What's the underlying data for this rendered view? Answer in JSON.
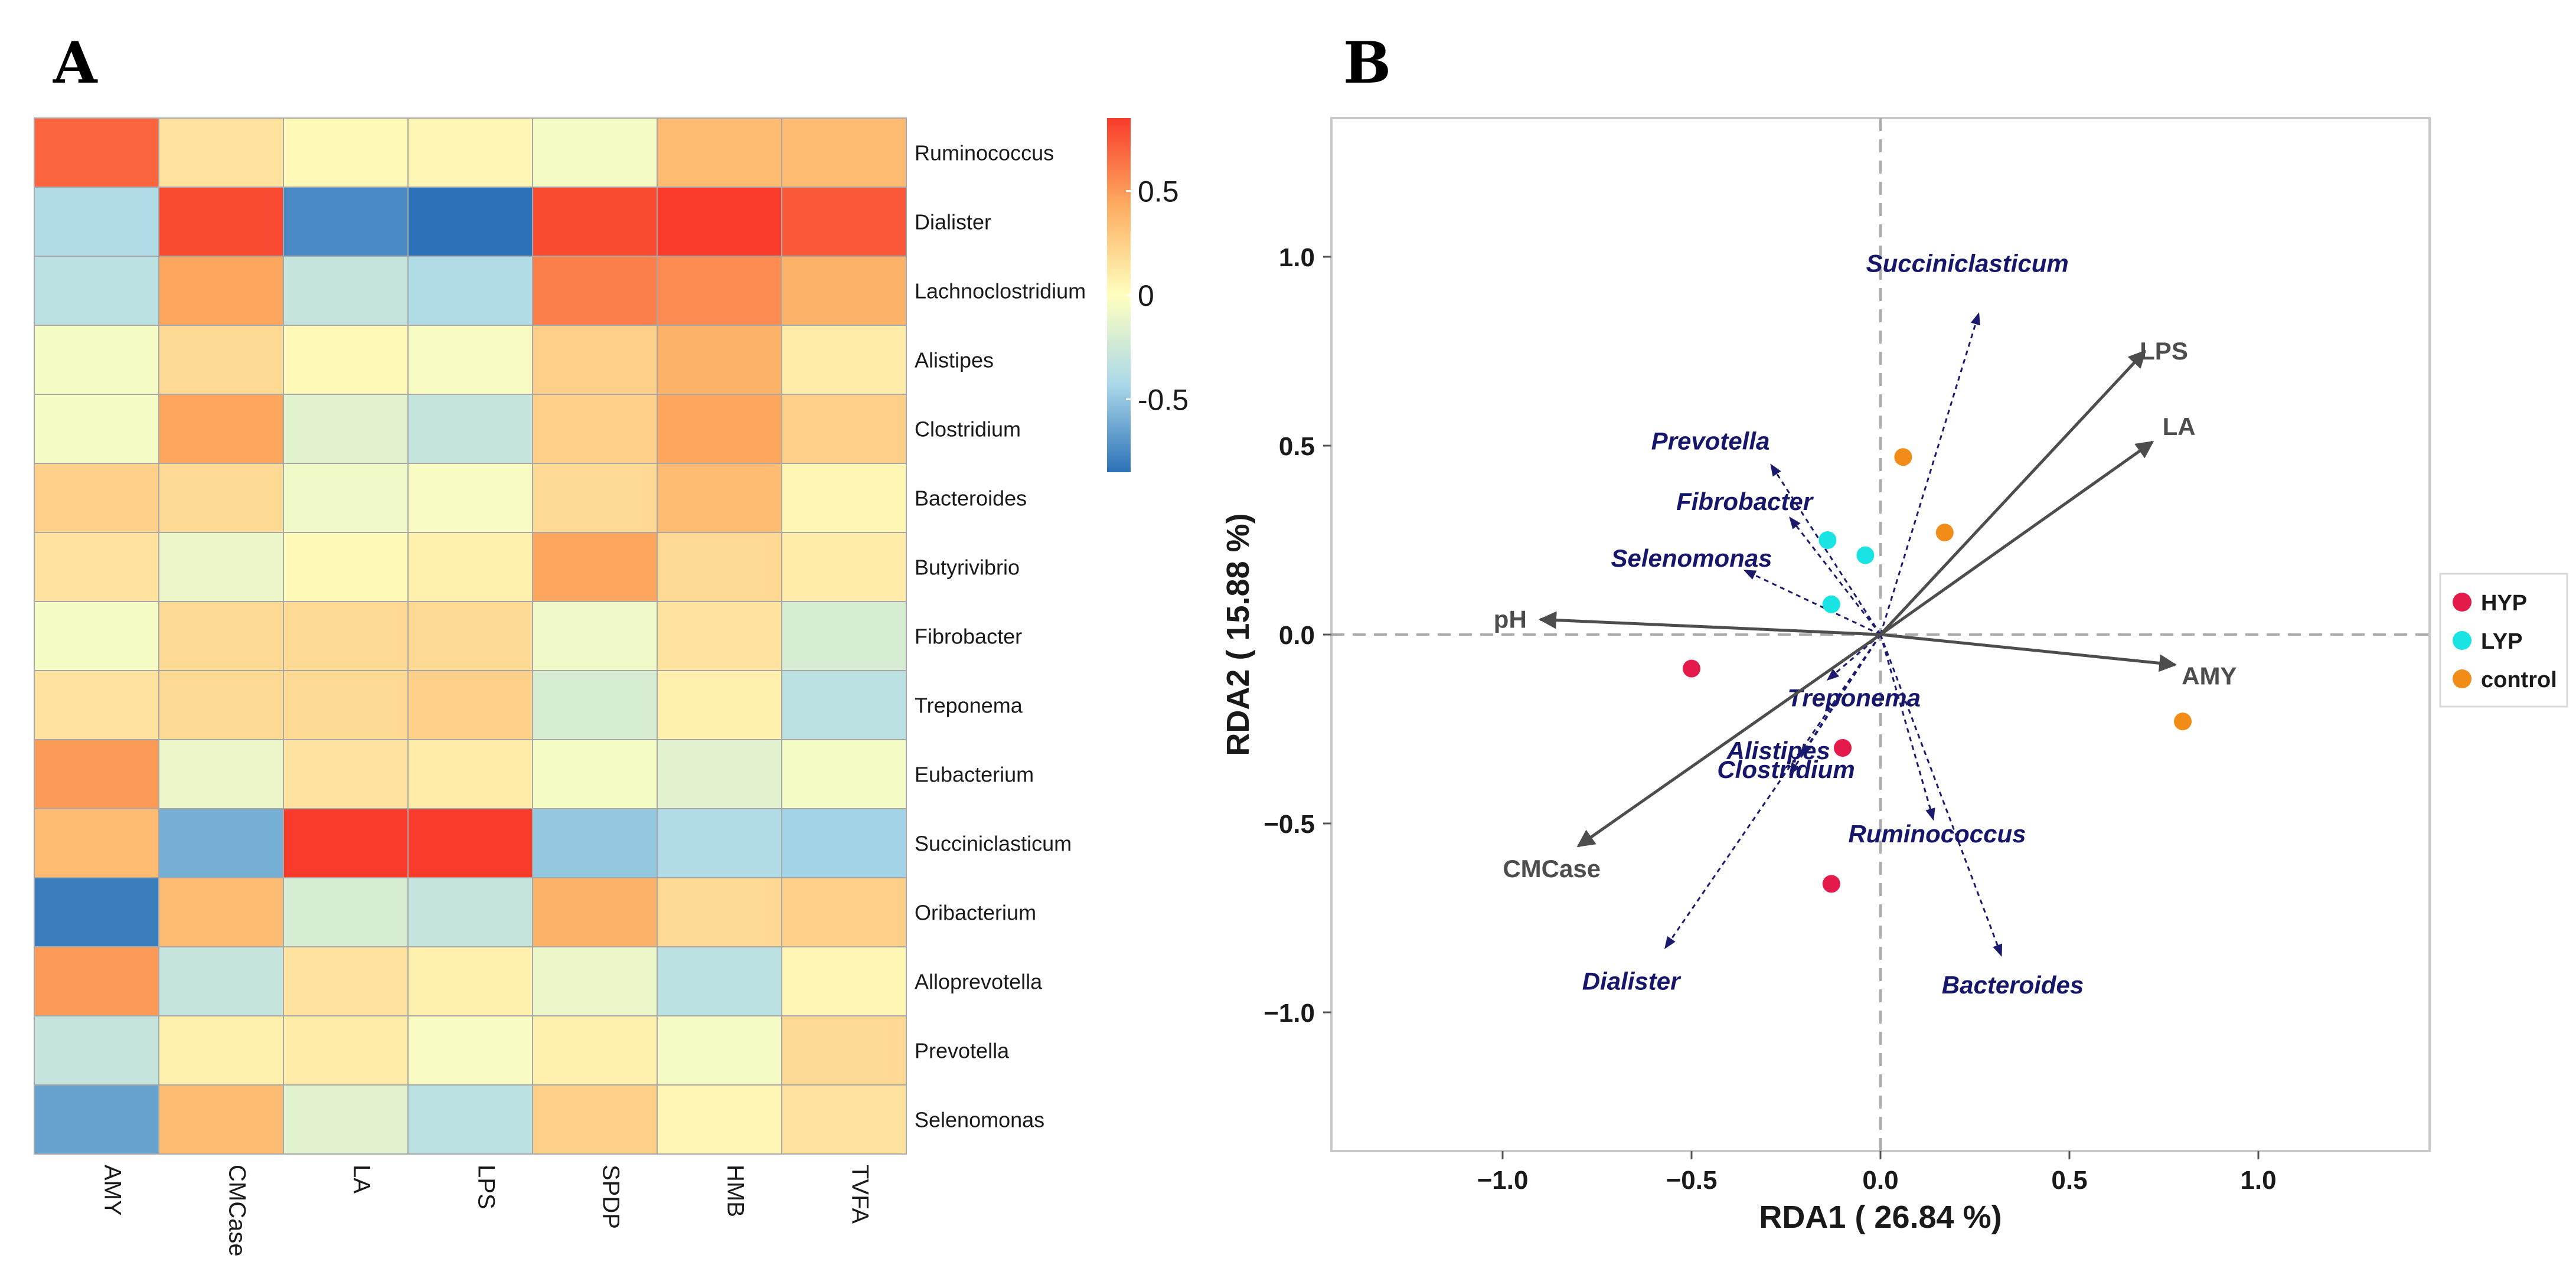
{
  "panels": {
    "a_label": "A",
    "b_label": "B"
  },
  "chart_data": [
    {
      "type": "heatmap",
      "title": "",
      "rows": [
        "Ruminococcus",
        "Dialister",
        "Lachnoclostridium",
        "Alistipes",
        "Clostridium",
        "Bacteroides",
        "Butyrivibrio",
        "Fibrobacter",
        "Treponema",
        "Eubacterium",
        "Succiniclasticum",
        "Oribacterium",
        "Alloprevotella",
        "Prevotella",
        "Selenomonas"
      ],
      "columns": [
        "AMY",
        "CMCase",
        "LA",
        "LPS",
        "SPDP",
        "HMB",
        "TVFA"
      ],
      "values": [
        [
          0.7,
          0.15,
          0.03,
          0.05,
          -0.05,
          0.35,
          0.35
        ],
        [
          -0.4,
          0.8,
          -0.75,
          -0.85,
          0.8,
          0.85,
          0.75
        ],
        [
          -0.35,
          0.45,
          -0.3,
          -0.4,
          0.6,
          0.55,
          0.4
        ],
        [
          -0.05,
          0.2,
          0.03,
          -0.03,
          0.25,
          0.4,
          0.1
        ],
        [
          -0.05,
          0.45,
          -0.15,
          -0.3,
          0.25,
          0.45,
          0.25
        ],
        [
          0.25,
          0.2,
          -0.08,
          -0.03,
          0.2,
          0.35,
          0.05
        ],
        [
          0.15,
          -0.1,
          0.03,
          0.08,
          0.45,
          0.2,
          0.1
        ],
        [
          -0.05,
          0.2,
          0.2,
          0.2,
          -0.08,
          0.15,
          -0.2
        ],
        [
          0.15,
          0.2,
          0.2,
          0.25,
          -0.2,
          0.08,
          -0.35
        ],
        [
          0.5,
          -0.1,
          0.15,
          0.1,
          -0.05,
          -0.15,
          -0.05
        ],
        [
          0.35,
          -0.6,
          0.85,
          0.85,
          -0.5,
          -0.4,
          -0.45
        ],
        [
          -0.8,
          0.35,
          -0.2,
          -0.3,
          0.4,
          0.2,
          0.25
        ],
        [
          0.5,
          -0.3,
          0.15,
          0.08,
          -0.1,
          -0.35,
          0.05
        ],
        [
          -0.3,
          0.08,
          0.1,
          -0.03,
          0.08,
          -0.05,
          0.2
        ],
        [
          -0.65,
          0.35,
          -0.15,
          -0.35,
          0.25,
          0.05,
          0.15
        ]
      ],
      "colorbar": {
        "ticks": [
          0.5,
          0,
          -0.5
        ],
        "tick_labels": [
          "0.5",
          "0",
          "-0.5"
        ],
        "range": [
          -0.85,
          0.85
        ]
      },
      "colors": {
        "low": "#2B72B8",
        "mid": "#FFFFBF",
        "high": "#F93B2B"
      }
    },
    {
      "type": "scatter",
      "title": "",
      "xlabel": "RDA1 ( 26.84 %)",
      "ylabel": "RDA2 ( 15.88 %)",
      "xlim": [
        -1.45,
        1.45
      ],
      "ylim": [
        -1.45,
        1.45
      ],
      "xticks": [
        -1.0,
        -0.5,
        0.0,
        0.5,
        1.0
      ],
      "xtick_labels": [
        "−1.0",
        "−0.5",
        "0.0",
        "0.5",
        "1.0"
      ],
      "yticks": [
        1.0,
        0.5,
        0.0,
        -0.5,
        -1.0
      ],
      "ytick_labels": [
        "1.0",
        "0.5",
        "0.0",
        "−0.5",
        "−1.0"
      ],
      "series": [
        {
          "name": "HYP",
          "color": "#E31A4A",
          "points": [
            [
              -0.5,
              -0.09
            ],
            [
              -0.1,
              -0.3
            ],
            [
              -0.13,
              -0.66
            ]
          ]
        },
        {
          "name": "LYP",
          "color": "#19E3E3",
          "points": [
            [
              -0.14,
              0.25
            ],
            [
              -0.04,
              0.21
            ],
            [
              -0.13,
              0.08
            ]
          ]
        },
        {
          "name": "control",
          "color": "#F28C18",
          "points": [
            [
              0.06,
              0.47
            ],
            [
              0.17,
              0.27
            ],
            [
              0.8,
              -0.23
            ]
          ]
        }
      ],
      "env_arrows": [
        {
          "label": "LPS",
          "x": 0.7,
          "y": 0.75,
          "lx": 0.75,
          "ly": 0.75
        },
        {
          "label": "LA",
          "x": 0.72,
          "y": 0.51,
          "lx": 0.79,
          "ly": 0.55
        },
        {
          "label": "pH",
          "x": -0.9,
          "y": 0.04,
          "lx": -0.98,
          "ly": 0.04
        },
        {
          "label": "AMY",
          "x": 0.78,
          "y": -0.08,
          "lx": 0.87,
          "ly": -0.11
        },
        {
          "label": "CMCase",
          "x": -0.8,
          "y": -0.56,
          "lx": -0.87,
          "ly": -0.62
        }
      ],
      "species_arrows": [
        {
          "label": "Succiniclasticum",
          "x": 0.26,
          "y": 0.85,
          "lx": 0.23,
          "ly": 0.96
        },
        {
          "label": "Prevotella",
          "x": -0.29,
          "y": 0.45,
          "lx": -0.45,
          "ly": 0.49
        },
        {
          "label": "Fibrobacter",
          "x": -0.24,
          "y": 0.31,
          "lx": -0.36,
          "ly": 0.33
        },
        {
          "label": "Selenomonas",
          "x": -0.36,
          "y": 0.17,
          "lx": -0.5,
          "ly": 0.18
        },
        {
          "label": "Treponema",
          "x": -0.14,
          "y": -0.12,
          "lx": -0.07,
          "ly": -0.19
        },
        {
          "label": "Alistipes",
          "x": -0.21,
          "y": -0.32,
          "lx": -0.27,
          "ly": -0.33
        },
        {
          "label": "Clostridium",
          "x": -0.24,
          "y": -0.37,
          "lx": -0.25,
          "ly": -0.38
        },
        {
          "label": "Ruminococcus",
          "x": 0.14,
          "y": -0.49,
          "lx": 0.15,
          "ly": -0.55
        },
        {
          "label": "Dialister",
          "x": -0.57,
          "y": -0.83,
          "lx": -0.66,
          "ly": -0.94
        },
        {
          "label": "Bacteroides",
          "x": 0.32,
          "y": -0.85,
          "lx": 0.35,
          "ly": -0.95
        }
      ],
      "legend": {
        "placement": "right",
        "entries": [
          "HYP",
          "LYP",
          "control"
        ]
      }
    }
  ]
}
